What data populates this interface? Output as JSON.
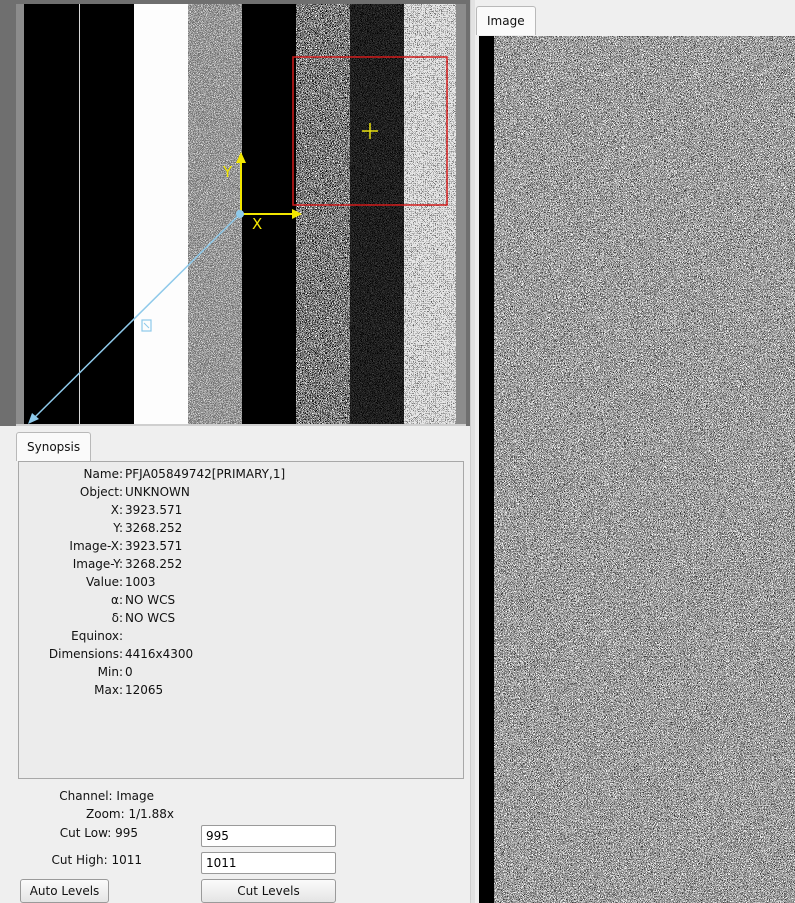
{
  "tabs": {
    "synopsis": "Synopsis",
    "image": "Image"
  },
  "pan_overlay": {
    "x_axis_label": "X",
    "y_axis_label": "Y"
  },
  "synopsis": {
    "rows": [
      {
        "key": "Name:",
        "value": "PFJA05849742[PRIMARY,1]"
      },
      {
        "key": "Object:",
        "value": "UNKNOWN"
      },
      {
        "key": "X:",
        "value": "3923.571"
      },
      {
        "key": "Y:",
        "value": "3268.252"
      },
      {
        "key": "Image-X:",
        "value": "3923.571"
      },
      {
        "key": "Image-Y:",
        "value": "3268.252"
      },
      {
        "key": "Value:",
        "value": "1003"
      },
      {
        "key": "α:",
        "value": "NO WCS"
      },
      {
        "key": "δ:",
        "value": "NO WCS"
      },
      {
        "key": "Equinox:",
        "value": ""
      },
      {
        "key": "Dimensions:",
        "value": "4416x4300"
      },
      {
        "key": "Min:",
        "value": "0"
      },
      {
        "key": "Max:",
        "value": "12065"
      }
    ]
  },
  "controls": {
    "channel_label": "Channel: Image",
    "zoom_label": "Zoom: 1/1.88x",
    "cut_low_label": "Cut Low: 995",
    "cut_low_value": "995",
    "cut_high_label": "Cut High: 1011",
    "cut_high_value": "1011",
    "auto_levels_button": "Auto Levels",
    "cut_levels_button": "Cut Levels"
  },
  "colors": {
    "pan_box": "#d11a1a",
    "cursor": "#e8e010",
    "compass": "#f2e600",
    "wcs_arrow": "#8ec9ea"
  }
}
